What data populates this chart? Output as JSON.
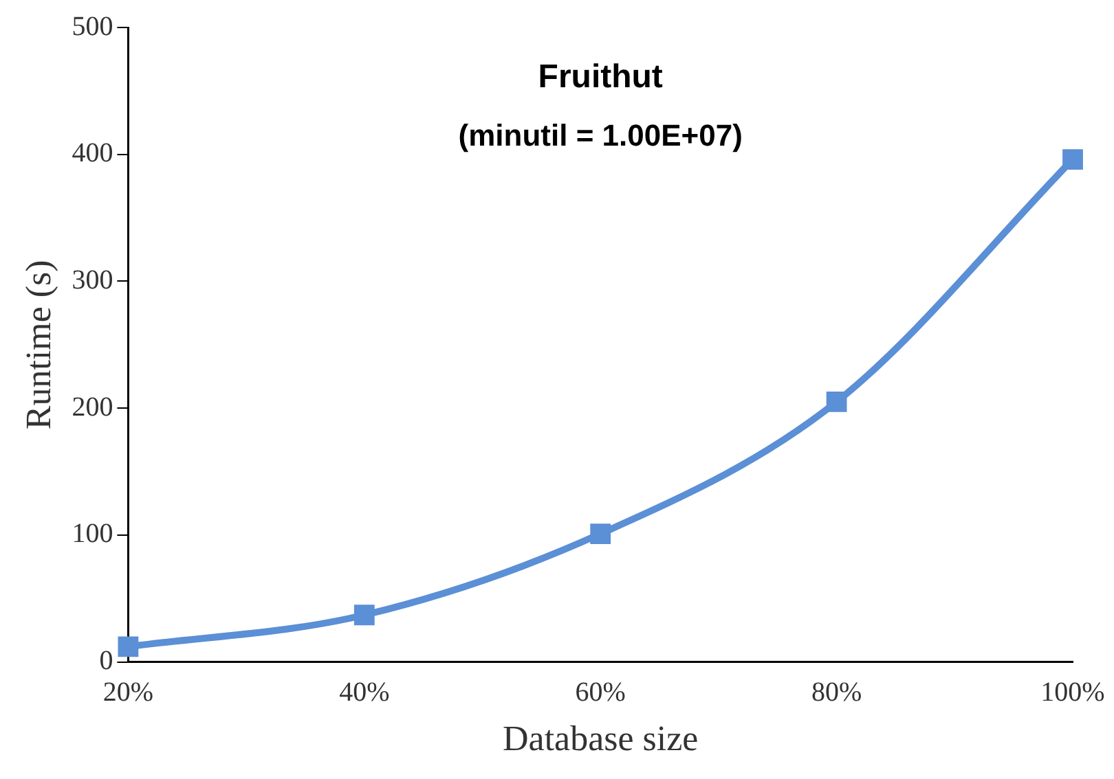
{
  "chart_data": {
    "type": "line",
    "title": "Fruithut",
    "subtitle": "(minutil = 1.00E+07)",
    "xlabel": "Database size",
    "ylabel": "Runtime (s)",
    "categories": [
      "20%",
      "40%",
      "60%",
      "80%",
      "100%"
    ],
    "series": [
      {
        "color": "#5b8fd6",
        "values": [
          12,
          37,
          101,
          205,
          396
        ]
      }
    ],
    "ylim": [
      0,
      500
    ],
    "yticks": [
      0,
      100,
      200,
      300,
      400,
      500
    ],
    "grid": false,
    "legend": false,
    "marker": "square",
    "line_style": "solid"
  }
}
